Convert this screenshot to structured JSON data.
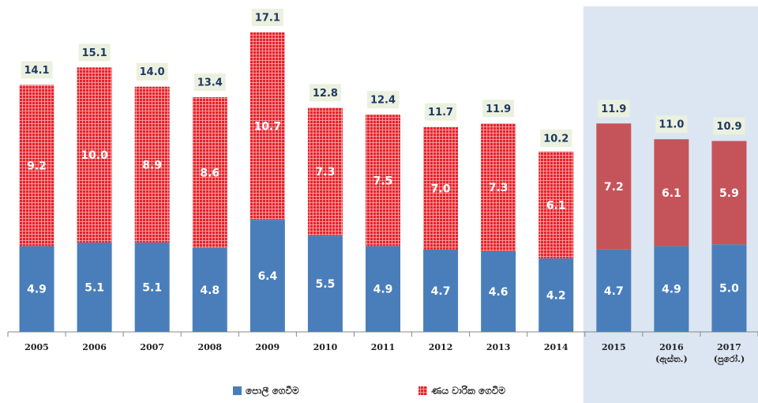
{
  "chart_data": {
    "type": "stacked_bar",
    "categories": [
      "2005",
      "2006",
      "2007",
      "2008",
      "2009",
      "2010",
      "2011",
      "2012",
      "2013",
      "2014",
      "2015",
      "2016\n(ඇස්ත.)",
      "2017\n(පුරෝ.)"
    ],
    "series": [
      {
        "name": "පොලී ගෙවීම",
        "color": "#4a7ebb",
        "values": [
          4.9,
          5.1,
          5.1,
          4.8,
          6.4,
          5.5,
          4.9,
          4.7,
          4.6,
          4.2,
          4.7,
          4.9,
          5.0
        ]
      },
      {
        "name": "ණය වාරික ගෙවීම",
        "color": "#e8222a",
        "shaded_color": "#c5545a",
        "values": [
          9.2,
          10.0,
          8.9,
          8.6,
          10.7,
          7.3,
          7.5,
          7.0,
          7.3,
          6.1,
          7.2,
          6.1,
          5.9
        ]
      }
    ],
    "totals": [
      14.1,
      15.1,
      14.0,
      13.4,
      17.1,
      12.8,
      12.4,
      11.7,
      11.9,
      10.2,
      11.9,
      11.0,
      10.9
    ],
    "value_labels_inside": [
      [
        "4.9",
        "5.1",
        "5.1",
        "4.8",
        "6.4",
        "5.5",
        "4.9",
        "4.7",
        "4.6",
        "4.2",
        "4.7",
        "4.9",
        "5.0"
      ],
      [
        "9.2",
        "10.0",
        "8.9",
        "8.6",
        "10.7",
        "7.3",
        "7.5",
        "7.0",
        "7.3",
        "6.1",
        "7.2",
        "6.1",
        "5.9"
      ]
    ],
    "totals_labels": [
      "14.1",
      "15.1",
      "14.0",
      "13.4",
      "17.1",
      "12.8",
      "12.4",
      "11.7",
      "11.9",
      "10.2",
      "11.9",
      "11.0",
      "10.9"
    ],
    "ylim": [
      0,
      17.1
    ],
    "shaded_from_index": 10,
    "shade_color": "#dce6f2"
  }
}
